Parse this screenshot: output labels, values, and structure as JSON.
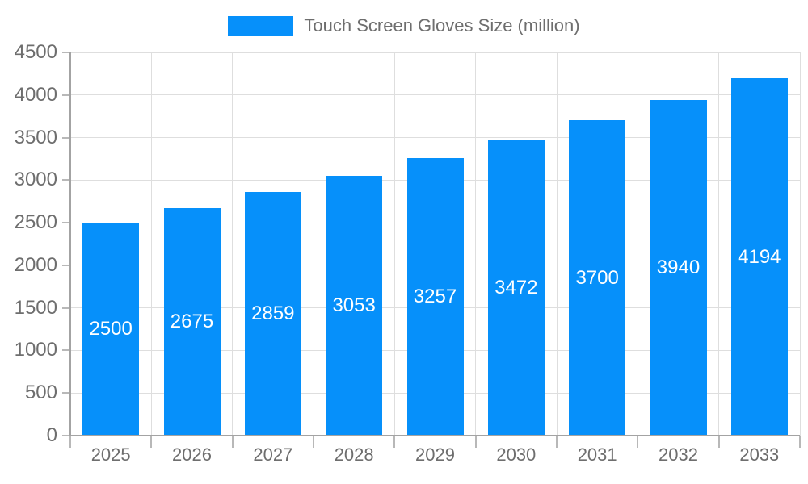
{
  "legend": {
    "label": "Touch Screen Gloves Size (million)"
  },
  "colors": {
    "bar": "#0690fa",
    "grid": "#dedede",
    "axis": "#a3a3a3",
    "tick": "#b8b8b8",
    "tick_text": "#6e6e6e",
    "bar_label_text": "#ffffff"
  },
  "chart_data": {
    "type": "bar",
    "title": "Touch Screen Gloves Size (million)",
    "categories": [
      "2025",
      "2026",
      "2027",
      "2028",
      "2029",
      "2030",
      "2031",
      "2032",
      "2033"
    ],
    "values": [
      2500,
      2675,
      2859,
      3053,
      3257,
      3472,
      3700,
      3940,
      4194
    ],
    "xlabel": "",
    "ylabel": "",
    "ylim": [
      0,
      4500
    ],
    "y_tick_step": 500,
    "y_tick_labels": [
      "0",
      "500",
      "1000",
      "1500",
      "2000",
      "2500",
      "3000",
      "3500",
      "4000",
      "4500"
    ],
    "grid": true,
    "legend_position": "top",
    "value_labels": "inside-center"
  }
}
